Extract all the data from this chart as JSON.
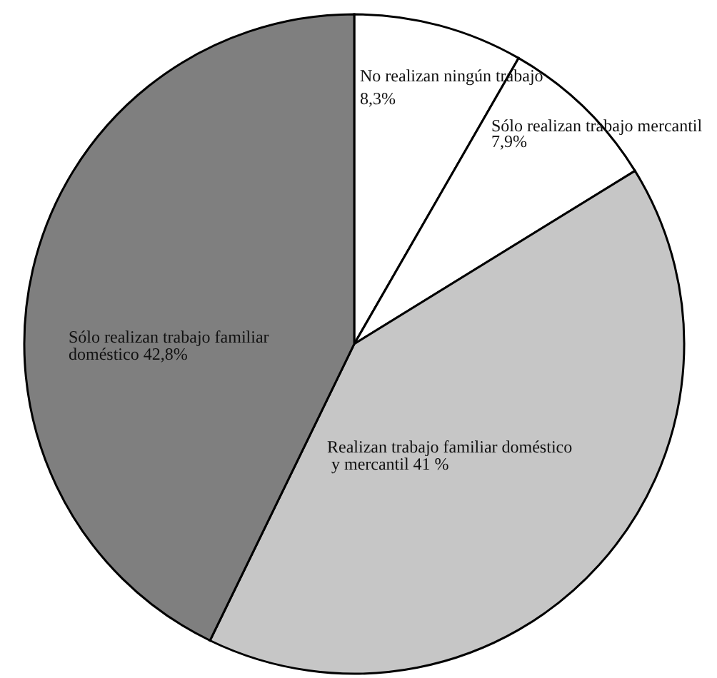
{
  "chart_data": {
    "type": "pie",
    "categories": [
      "No realizan ningún trabajo",
      "Sólo realizan trabajo mercantil",
      "Realizan trabajo familiar doméstico y mercantil",
      "Sólo realizan trabajo familiar doméstico"
    ],
    "values": [
      8.3,
      7.9,
      41,
      42.8
    ],
    "value_labels": [
      "8,3%",
      "7,9%",
      "41 %",
      "42,8%"
    ],
    "colors": [
      "#ffffff",
      "#ffffff",
      "#c6c6c6",
      "#7f7f7f"
    ]
  }
}
